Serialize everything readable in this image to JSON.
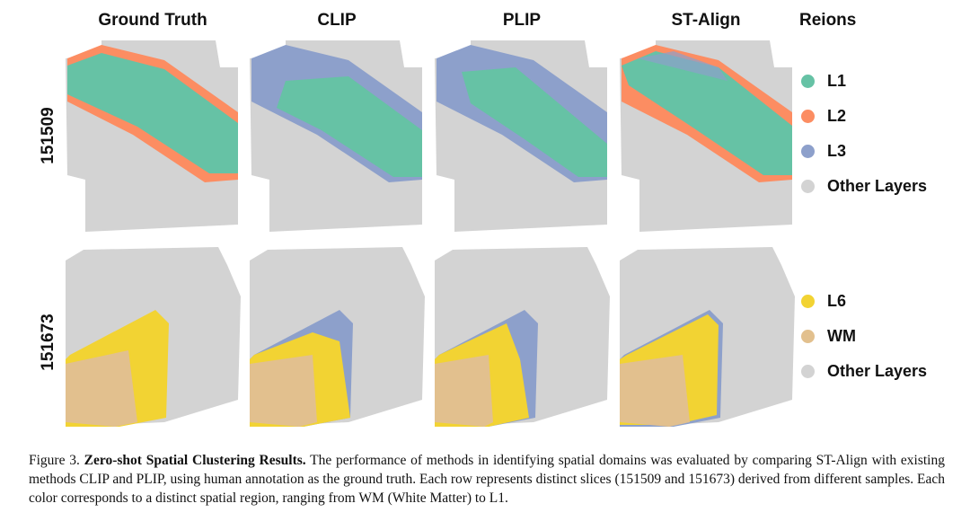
{
  "columns": [
    "Ground Truth",
    "CLIP",
    "PLIP",
    "ST-Align"
  ],
  "rows": [
    "151509",
    "151673"
  ],
  "legend": {
    "title": "Reions",
    "top": [
      {
        "label": "L1",
        "color": "#66c2a5"
      },
      {
        "label": "L2",
        "color": "#fc8d62"
      },
      {
        "label": "L3",
        "color": "#8da0cb"
      },
      {
        "label": "Other Layers",
        "color": "#d3d3d3"
      }
    ],
    "bottom": [
      {
        "label": "L6",
        "color": "#f2d333"
      },
      {
        "label": "WM",
        "color": "#e2c08e"
      },
      {
        "label": "Other Layers",
        "color": "#d3d3d3"
      }
    ]
  },
  "caption": {
    "prefix": "Figure 3. ",
    "bold": "Zero-shot Spatial Clustering Results.",
    "text": " The performance of methods in identifying spatial domains was evaluated by comparing ST-Align with existing methods CLIP and PLIP, using human annotation as the ground truth. Each row represents distinct slices (151509 and 151673) derived from different samples. Each color corresponds to a distinct spatial region, ranging from WM (White Matter) to L1."
  }
}
